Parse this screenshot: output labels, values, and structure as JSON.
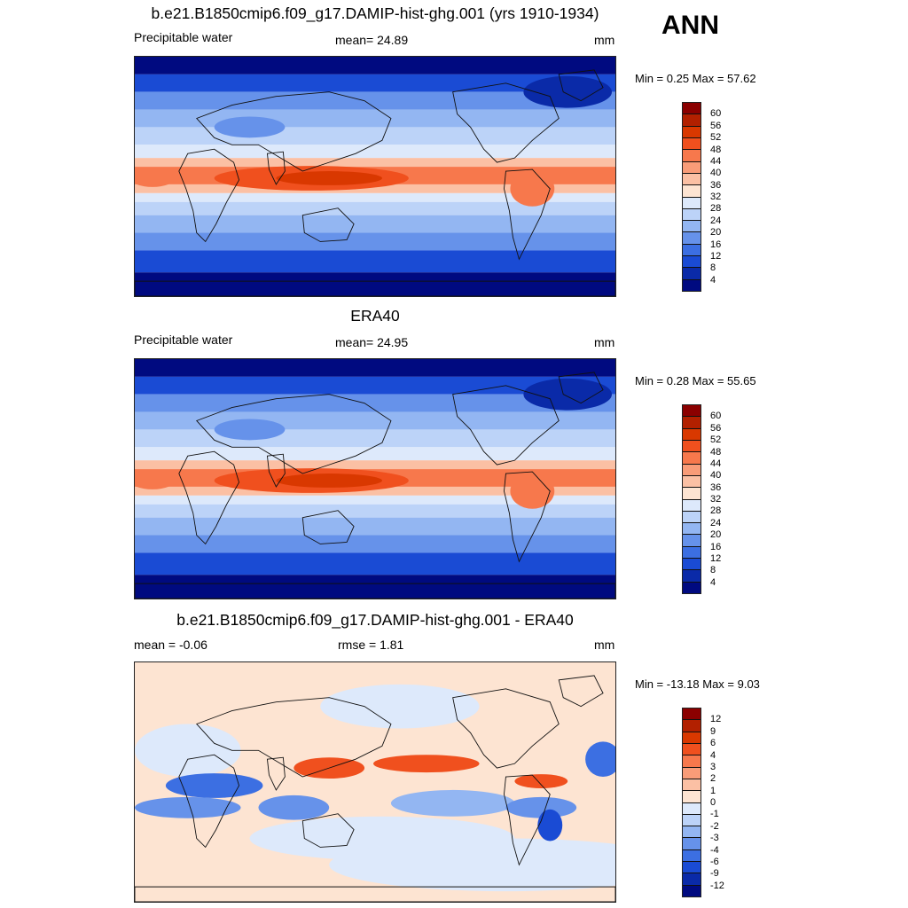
{
  "season": "ANN",
  "panels": [
    {
      "title": "b.e21.B1850cmip6.f09_g17.DAMIP-hist-ghg.001 (yrs 1910-1934)",
      "left": "Precipitable water",
      "center": "mean=  24.89",
      "right": "mm",
      "minmax": "Min =   0.25 Max =  57.62",
      "kind": "abs",
      "cbar_labels": [
        "60",
        "56",
        "52",
        "48",
        "44",
        "40",
        "36",
        "32",
        "28",
        "24",
        "20",
        "16",
        "12",
        "8",
        "4"
      ]
    },
    {
      "title": "ERA40",
      "left": "Precipitable water",
      "center": "mean=  24.95",
      "right": "mm",
      "minmax": "Min =   0.28 Max =  55.65",
      "kind": "abs",
      "cbar_labels": [
        "60",
        "56",
        "52",
        "48",
        "44",
        "40",
        "36",
        "32",
        "28",
        "24",
        "20",
        "16",
        "12",
        "8",
        "4"
      ]
    },
    {
      "title": "b.e21.B1850cmip6.f09_g17.DAMIP-hist-ghg.001 - ERA40",
      "left": "mean =  -0.06",
      "center": "rmse =   1.81",
      "right": "mm",
      "minmax": "Min = -13.18 Max =   9.03",
      "kind": "diff",
      "cbar_labels": [
        "12",
        "9",
        "6",
        "4",
        "3",
        "2",
        "1",
        "0",
        "-1",
        "-2",
        "-3",
        "-4",
        "-6",
        "-9",
        "-12"
      ]
    }
  ],
  "colors": {
    "abs": [
      "#8b0000",
      "#b22000",
      "#d93800",
      "#f0501e",
      "#f7784c",
      "#f99c78",
      "#fbc0a4",
      "#fde4d2",
      "#dde9fb",
      "#bcd3f8",
      "#93b6f2",
      "#6692ea",
      "#3c6fe2",
      "#1a4bd4",
      "#0a2aa8",
      "#000a80"
    ],
    "diff": [
      "#8b0000",
      "#b22000",
      "#d93800",
      "#f0501e",
      "#f7784c",
      "#f99c78",
      "#fbc0a4",
      "#fde4d2",
      "#dde9fb",
      "#bcd3f8",
      "#93b6f2",
      "#6692ea",
      "#3c6fe2",
      "#1a4bd4",
      "#0a2aa8",
      "#000a80"
    ]
  }
}
